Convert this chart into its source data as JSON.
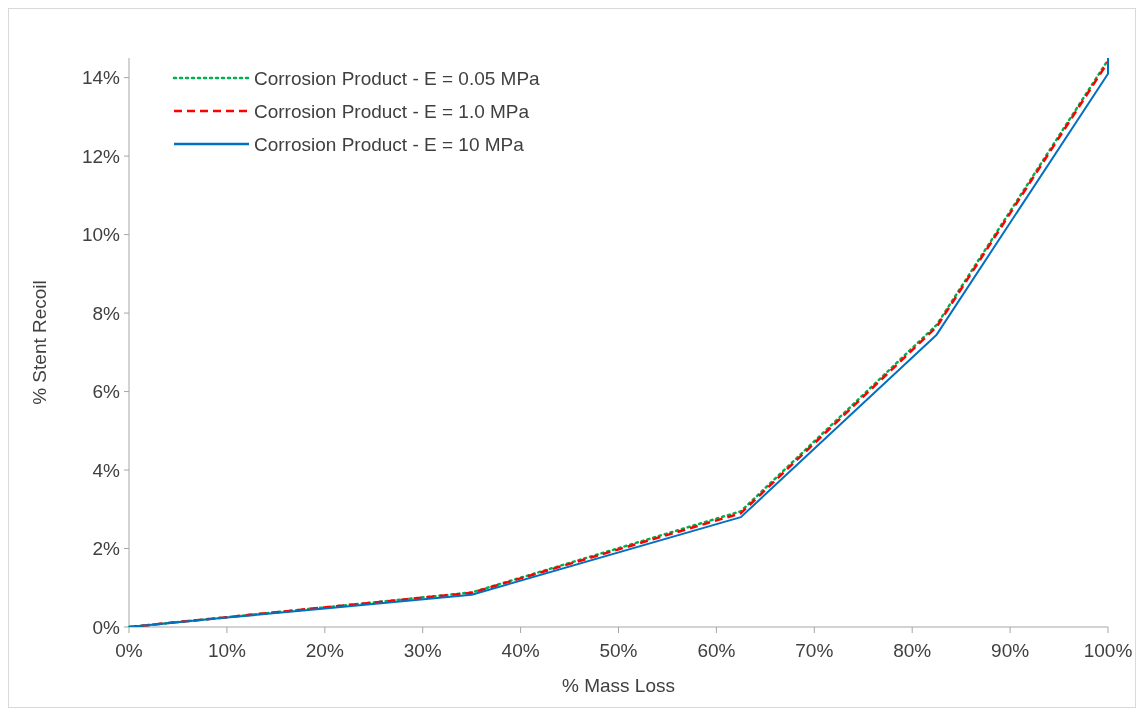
{
  "chart_data": {
    "type": "line",
    "xlabel": "% Mass Loss",
    "ylabel": "% Stent Recoil",
    "xlim": [
      0,
      100
    ],
    "ylim": [
      0,
      14.5
    ],
    "xticks": [
      {
        "value": 0,
        "label": "0%"
      },
      {
        "value": 10,
        "label": "10%"
      },
      {
        "value": 20,
        "label": "20%"
      },
      {
        "value": 30,
        "label": "30%"
      },
      {
        "value": 40,
        "label": "40%"
      },
      {
        "value": 50,
        "label": "50%"
      },
      {
        "value": 60,
        "label": "60%"
      },
      {
        "value": 70,
        "label": "70%"
      },
      {
        "value": 80,
        "label": "80%"
      },
      {
        "value": 90,
        "label": "90%"
      },
      {
        "value": 100,
        "label": "100%"
      }
    ],
    "yticks": [
      {
        "value": 0,
        "label": "0%"
      },
      {
        "value": 2,
        "label": "2%"
      },
      {
        "value": 4,
        "label": "4%"
      },
      {
        "value": 6,
        "label": "6%"
      },
      {
        "value": 8,
        "label": "8%"
      },
      {
        "value": 10,
        "label": "10%"
      },
      {
        "value": 12,
        "label": "12%"
      },
      {
        "value": 14,
        "label": "14%"
      }
    ],
    "grid": false,
    "legend": "top left",
    "series": [
      {
        "name": "Corrosion Product - E = 0.05 MPa",
        "color": "#00b050",
        "line_style": "dotted",
        "x": [
          0,
          10,
          20,
          35,
          62.5,
          82.5,
          100
        ],
        "values": [
          0,
          0.25,
          0.5,
          0.88,
          2.95,
          7.7,
          14.45
        ]
      },
      {
        "name": "Corrosion Product - E = 1.0 MPa",
        "color": "#ff0000",
        "line_style": "dashed",
        "x": [
          0,
          10,
          20,
          35,
          62.5,
          82.5,
          100
        ],
        "values": [
          0,
          0.25,
          0.5,
          0.87,
          2.9,
          7.65,
          14.4
        ]
      },
      {
        "name": "Corrosion Product - E = 10 MPa",
        "color": "#0070c0",
        "line_style": "solid",
        "x": [
          0,
          10,
          20,
          35,
          62.5,
          82.5,
          100,
          100
        ],
        "values": [
          0,
          0.24,
          0.47,
          0.82,
          2.8,
          7.45,
          14.1,
          14.5
        ]
      }
    ]
  }
}
